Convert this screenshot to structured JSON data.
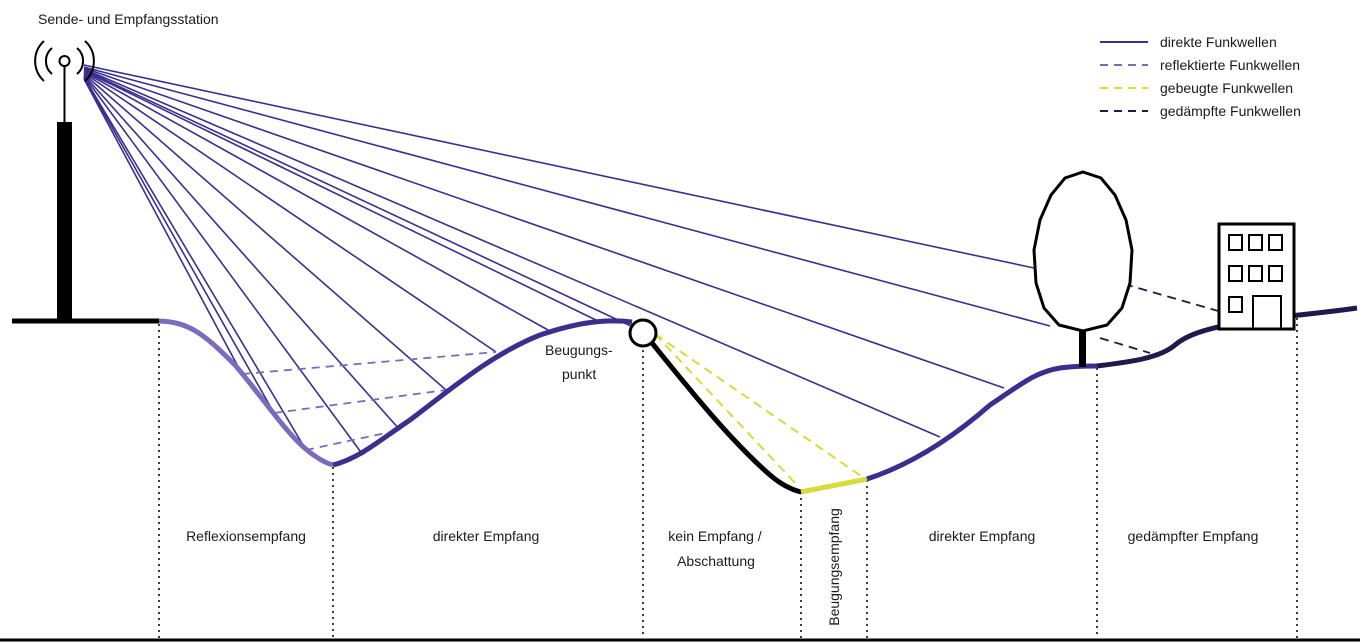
{
  "title": "Sende- und Empfangsstation",
  "legend": {
    "direct": "direkte Funkwellen",
    "reflected": "reflektierte Funkwellen",
    "diffracted": "gebeugte Funkwellen",
    "damped": "gedämpfte Funkwellen"
  },
  "point_label": {
    "line1": "Beugungs-",
    "line2": "punkt"
  },
  "zones": {
    "reflection": "Reflexionsempfang",
    "direct_1": "direkter Empfang",
    "shadow_line1": "kein Empfang /",
    "shadow_line2": "Abschattung",
    "diffraction": "Beugungsempfang",
    "direct_2": "direkter Empfang",
    "damped": "gedämpfter Empfang"
  },
  "colors": {
    "direct": "#3a2f8f",
    "reflected": "#7b6bbd",
    "diffracted": "#d6dc3c",
    "damped": "#1e1a4a",
    "terrain": "#000000"
  }
}
